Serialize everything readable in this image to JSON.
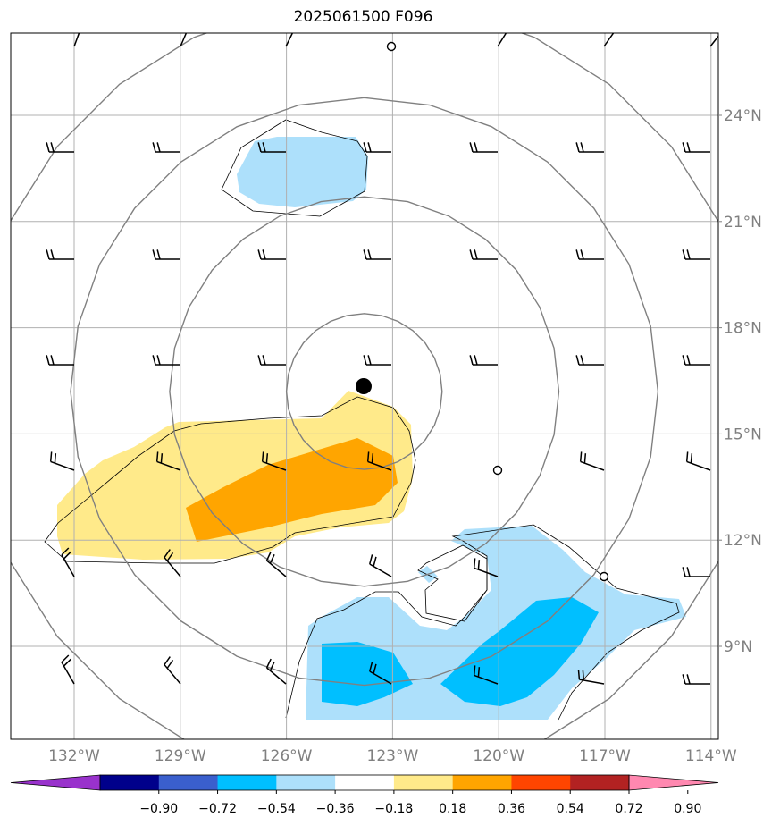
{
  "title": "2025061500 F096",
  "map": {
    "lon_range": [
      -134.5,
      -114.1
    ],
    "lat_range": [
      6.2,
      26.3
    ],
    "lon_ticks": [
      {
        "value": -132,
        "label": "132°W"
      },
      {
        "value": -129,
        "label": "129°W"
      },
      {
        "value": -126,
        "label": "126°W"
      },
      {
        "value": -123,
        "label": "123°W"
      },
      {
        "value": -120,
        "label": "120°W"
      },
      {
        "value": -117,
        "label": "117°W"
      },
      {
        "value": -114,
        "label": "114°W"
      }
    ],
    "lat_ticks": [
      {
        "value": 24,
        "label": "24°N"
      },
      {
        "value": 21,
        "label": "21°N"
      },
      {
        "value": 18,
        "label": "18°N"
      },
      {
        "value": 15,
        "label": "15°N"
      },
      {
        "value": 12,
        "label": "12°N"
      },
      {
        "value": 9,
        "label": "9°N"
      }
    ],
    "grid": true,
    "storm_center": {
      "lon": -123.8,
      "lat": 16.4
    },
    "range_rings_deg": [
      2.2,
      5.5,
      8.3,
      11.1
    ],
    "colors": {
      "neg_light": "#ade0fb",
      "neg_mid": "#00bfff",
      "pos_light": "#ffea8a",
      "pos_mid": "#ffa500",
      "ring": "#808080",
      "grid": "#b0b0b0"
    }
  },
  "colorbar": {
    "colors": [
      "#9932cc",
      "#00008b",
      "#3a5fcd",
      "#00bfff",
      "#ade0fb",
      "#ffffff",
      "#ffea8a",
      "#ffa500",
      "#ff4500",
      "#b22222",
      "#ff88b0"
    ],
    "labels": [
      "−0.90",
      "−0.72",
      "−0.54",
      "−0.36",
      "−0.18",
      "0.18",
      "0.36",
      "0.54",
      "0.72",
      "0.90"
    ]
  }
}
